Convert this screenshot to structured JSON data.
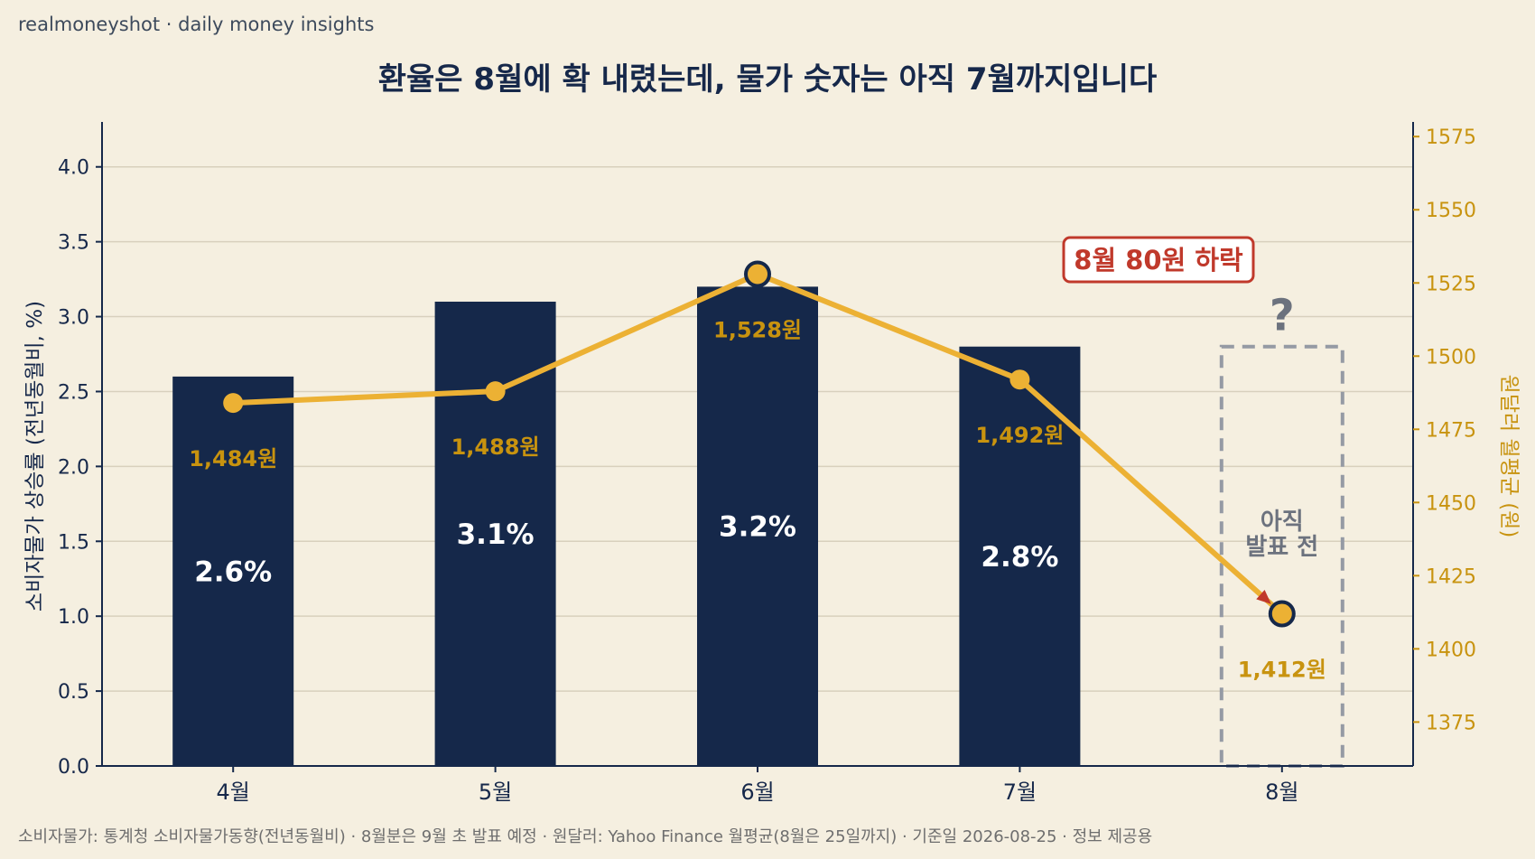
{
  "header": {
    "brand": "realmoneyshot · daily money insights",
    "title": "환율은 8월에 확 내렸는데, 물가 숫자는 아직 7월까지입니다"
  },
  "footer": {
    "source": "소비자물가: 통계청 소비자물가동향(전년동월비) · 8월분은 9월 초 발표 예정 · 원달러: Yahoo Finance 월평균(8월은 25일까지) · 기준일 2026-08-25 · 정보 제공용"
  },
  "chart_data": {
    "type": "bar",
    "categories": [
      "4월",
      "5월",
      "6월",
      "7월",
      "8월"
    ],
    "series": [
      {
        "type": "bar",
        "axis": "left",
        "values": [
          2.6,
          3.1,
          3.2,
          2.8,
          null
        ],
        "labels": [
          "2.6%",
          "3.1%",
          "3.2%",
          "2.8%",
          null
        ],
        "color": "#15284a"
      },
      {
        "type": "line",
        "axis": "right",
        "values": [
          1484,
          1488,
          1528,
          1492,
          1412
        ],
        "labels": [
          "1,484원",
          "1,488원",
          "1,528원",
          "1,492원",
          "1,412원"
        ],
        "color": "#ecb134",
        "highlight_indices": [
          2,
          4
        ]
      }
    ],
    "ylabel_left": "소비자물가 상승률 (전년동월비, %)",
    "ylabel_right": "원달러 월평균 (원)",
    "ylim_left": [
      0,
      4.3
    ],
    "yticks_left": [
      0.0,
      0.5,
      1.0,
      1.5,
      2.0,
      2.5,
      3.0,
      3.5,
      4.0
    ],
    "ytick_labels_left": [
      "0.0",
      "0.5",
      "1.0",
      "1.5",
      "2.0",
      "2.5",
      "3.0",
      "3.5",
      "4.0"
    ],
    "ylim_right": [
      1360,
      1580
    ],
    "yticks_right": [
      1375,
      1400,
      1425,
      1450,
      1475,
      1500,
      1525,
      1550,
      1575
    ],
    "ytick_labels_right": [
      "1375",
      "1400",
      "1425",
      "1450",
      "1475",
      "1500",
      "1525",
      "1550",
      "1575"
    ],
    "grid": "horizontal",
    "pending_box": {
      "category_index": 4,
      "top_value": 2.8,
      "label_line1": "아직",
      "label_line2": "발표 전",
      "marker": "?"
    },
    "annotation": {
      "text": "8월 80원 하락",
      "color": "#c0392b"
    }
  }
}
